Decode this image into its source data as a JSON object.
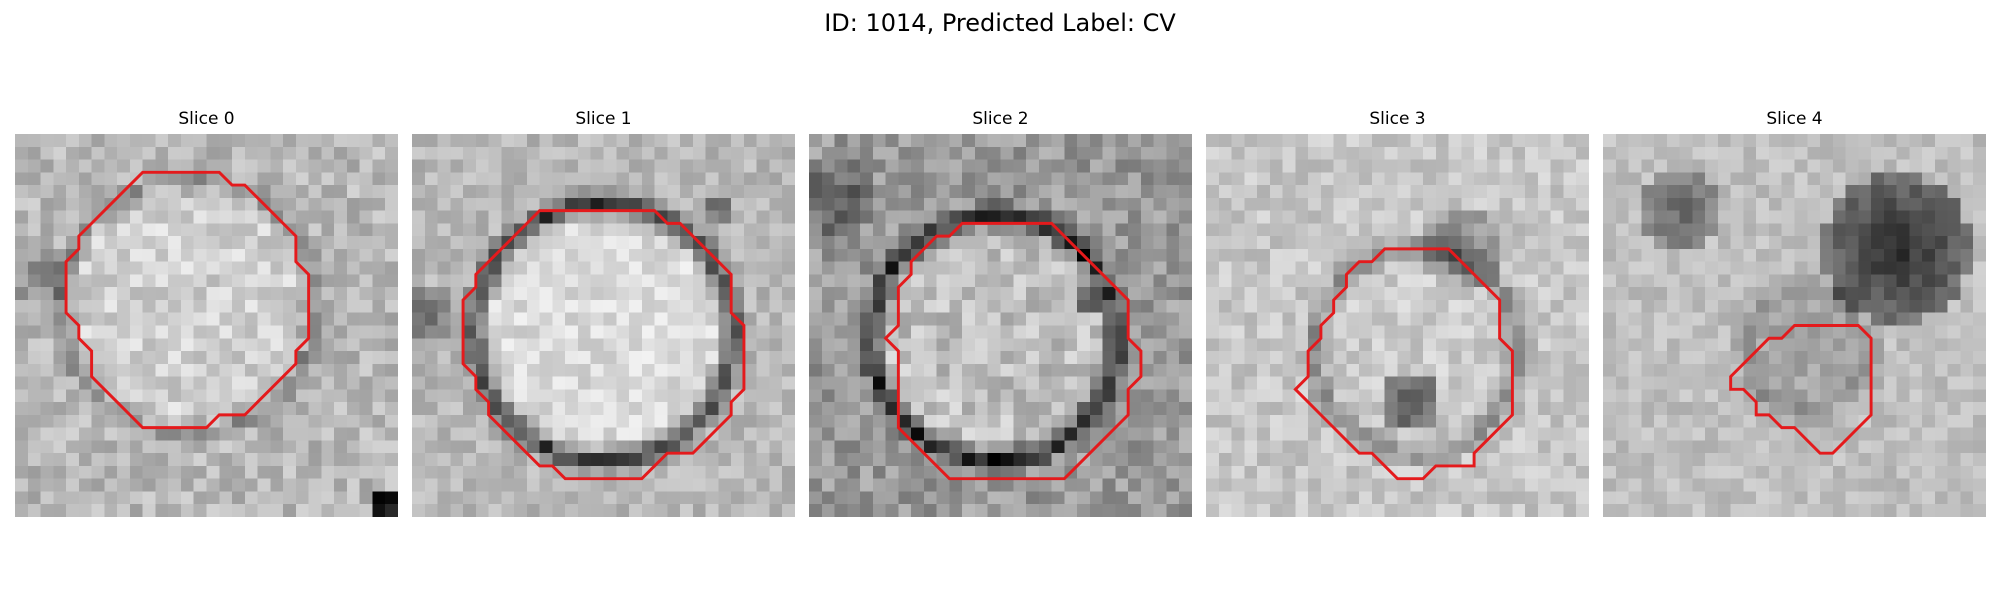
{
  "figure": {
    "title": "ID: 1014, Predicted Label: CV"
  },
  "panels": [
    {
      "title": "Slice 0"
    },
    {
      "title": "Slice 1"
    },
    {
      "title": "Slice 2"
    },
    {
      "title": "Slice 3"
    },
    {
      "title": "Slice 4"
    }
  ],
  "colors": {
    "contour": "#e41a1c",
    "background": "#ffffff"
  },
  "colormap": "gray"
}
